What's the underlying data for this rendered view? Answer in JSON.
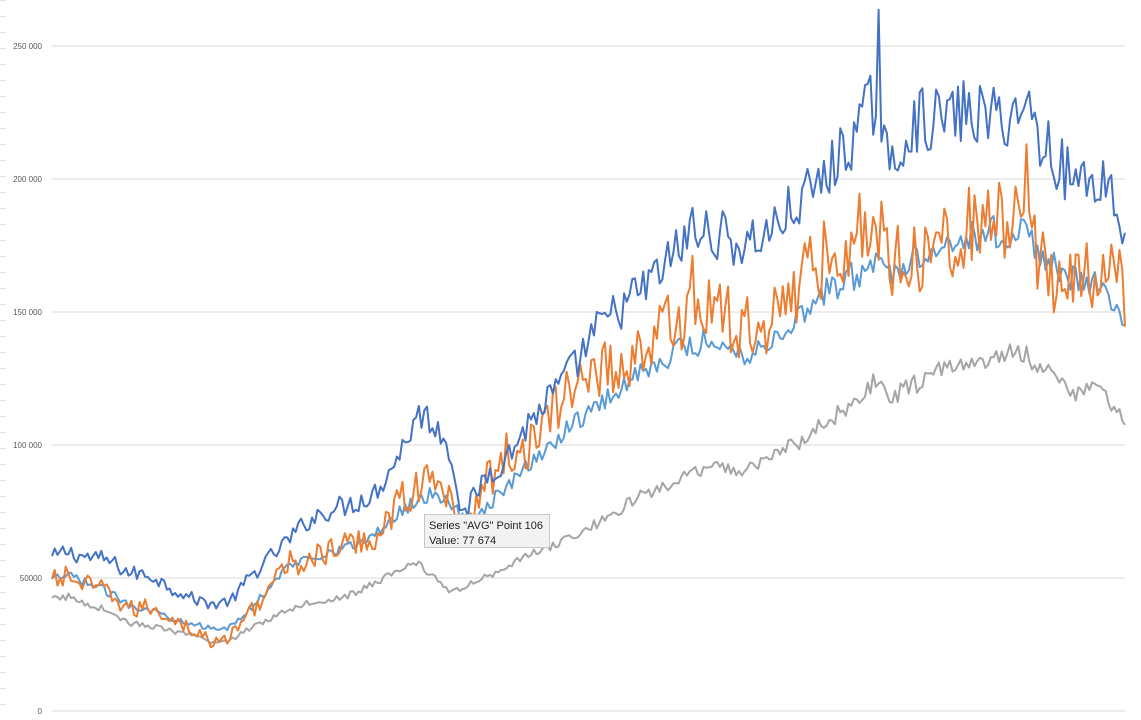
{
  "chart_data": {
    "type": "line",
    "title": "",
    "xlabel": "",
    "ylabel": "",
    "ylim": [
      0,
      260000
    ],
    "y_ticks": [
      0,
      50000,
      100000,
      150000,
      200000,
      250000
    ],
    "y_tick_labels": [
      "0",
      "50000",
      "100 000",
      "150 000",
      "200 000",
      "250 000"
    ],
    "grid": "horizontal",
    "legend": "none",
    "series": [
      {
        "color": "#4472c4",
        "anchors": [
          [
            0,
            57500
          ],
          [
            5,
            60000
          ],
          [
            12,
            58000
          ],
          [
            20,
            57000
          ],
          [
            28,
            52000
          ],
          [
            36,
            51000
          ],
          [
            44,
            46000
          ],
          [
            52,
            42000
          ],
          [
            60,
            40000
          ],
          [
            66,
            42000
          ],
          [
            72,
            50000
          ],
          [
            78,
            56000
          ],
          [
            86,
            64000
          ],
          [
            94,
            72000
          ],
          [
            102,
            76000
          ],
          [
            110,
            78000
          ],
          [
            118,
            82000
          ],
          [
            126,
            95000
          ],
          [
            134,
            112000
          ],
          [
            140,
            108000
          ],
          [
            146,
            97000
          ],
          [
            150,
            72000
          ],
          [
            158,
            88000
          ],
          [
            166,
            95000
          ],
          [
            174,
            108000
          ],
          [
            182,
            118000
          ],
          [
            190,
            128000
          ],
          [
            198,
            142000
          ],
          [
            206,
            150000
          ],
          [
            214,
            157000
          ],
          [
            222,
            165000
          ],
          [
            232,
            178000
          ],
          [
            242,
            180000
          ],
          [
            252,
            175000
          ],
          [
            262,
            180000
          ],
          [
            272,
            190000
          ],
          [
            282,
            200000
          ],
          [
            292,
            215000
          ],
          [
            302,
            232000
          ],
          [
            306,
            200000
          ],
          [
            314,
            222000
          ],
          [
            322,
            222000
          ],
          [
            332,
            225000
          ],
          [
            344,
            223000
          ],
          [
            354,
            225000
          ],
          [
            364,
            212000
          ],
          [
            372,
            200000
          ],
          [
            380,
            200000
          ],
          [
            386,
            200000
          ],
          [
            392,
            175000
          ]
        ]
      },
      {
        "color": "#ed7d31",
        "anchors": [
          [
            0,
            48500
          ],
          [
            6,
            51000
          ],
          [
            12,
            47000
          ],
          [
            20,
            45000
          ],
          [
            28,
            38000
          ],
          [
            36,
            39000
          ],
          [
            44,
            35000
          ],
          [
            52,
            30000
          ],
          [
            60,
            25000
          ],
          [
            66,
            29000
          ],
          [
            72,
            37000
          ],
          [
            78,
            44000
          ],
          [
            86,
            55000
          ],
          [
            94,
            57000
          ],
          [
            102,
            60000
          ],
          [
            110,
            63000
          ],
          [
            118,
            65000
          ],
          [
            126,
            78000
          ],
          [
            134,
            85000
          ],
          [
            140,
            86000
          ],
          [
            146,
            80000
          ],
          [
            150,
            65000
          ],
          [
            158,
            85000
          ],
          [
            166,
            95000
          ],
          [
            174,
            100000
          ],
          [
            182,
            110000
          ],
          [
            190,
            122000
          ],
          [
            198,
            130000
          ],
          [
            206,
            128000
          ],
          [
            214,
            135000
          ],
          [
            222,
            142000
          ],
          [
            232,
            150000
          ],
          [
            242,
            152000
          ],
          [
            252,
            142000
          ],
          [
            262,
            148000
          ],
          [
            272,
            160000
          ],
          [
            282,
            170000
          ],
          [
            292,
            180000
          ],
          [
            302,
            180000
          ],
          [
            306,
            172000
          ],
          [
            314,
            170000
          ],
          [
            322,
            178000
          ],
          [
            332,
            180000
          ],
          [
            344,
            185000
          ],
          [
            354,
            180000
          ],
          [
            364,
            165000
          ],
          [
            372,
            163000
          ],
          [
            380,
            162000
          ],
          [
            386,
            165000
          ],
          [
            392,
            158000
          ]
        ]
      },
      {
        "color": "#5b9bd5",
        "anchors": [
          [
            0,
            49000
          ],
          [
            6,
            51000
          ],
          [
            12,
            48500
          ],
          [
            20,
            45000
          ],
          [
            28,
            40000
          ],
          [
            36,
            38000
          ],
          [
            44,
            35000
          ],
          [
            52,
            33000
          ],
          [
            60,
            30000
          ],
          [
            66,
            32000
          ],
          [
            72,
            38000
          ],
          [
            78,
            45000
          ],
          [
            86,
            54000
          ],
          [
            94,
            58000
          ],
          [
            102,
            60000
          ],
          [
            110,
            62000
          ],
          [
            118,
            66000
          ],
          [
            126,
            74000
          ],
          [
            134,
            80000
          ],
          [
            140,
            82000
          ],
          [
            146,
            78000
          ],
          [
            150,
            72000
          ],
          [
            158,
            76000
          ],
          [
            166,
            84000
          ],
          [
            174,
            92000
          ],
          [
            182,
            100000
          ],
          [
            190,
            108000
          ],
          [
            198,
            114000
          ],
          [
            206,
            120000
          ],
          [
            214,
            127000
          ],
          [
            222,
            132000
          ],
          [
            232,
            137000
          ],
          [
            242,
            140000
          ],
          [
            252,
            134000
          ],
          [
            262,
            138000
          ],
          [
            272,
            148000
          ],
          [
            282,
            157000
          ],
          [
            292,
            163000
          ],
          [
            302,
            168000
          ],
          [
            306,
            165000
          ],
          [
            314,
            170000
          ],
          [
            322,
            175000
          ],
          [
            332,
            178000
          ],
          [
            344,
            180000
          ],
          [
            354,
            180000
          ],
          [
            364,
            170000
          ],
          [
            372,
            162000
          ],
          [
            380,
            160000
          ],
          [
            386,
            158000
          ],
          [
            392,
            147000
          ]
        ]
      },
      {
        "color": "#a5a5a5",
        "anchors": [
          [
            0,
            42000
          ],
          [
            6,
            43000
          ],
          [
            12,
            40500
          ],
          [
            20,
            38000
          ],
          [
            28,
            33000
          ],
          [
            36,
            32000
          ],
          [
            44,
            30000
          ],
          [
            52,
            28000
          ],
          [
            60,
            25500
          ],
          [
            66,
            27000
          ],
          [
            72,
            31000
          ],
          [
            78,
            34000
          ],
          [
            86,
            38000
          ],
          [
            94,
            41000
          ],
          [
            102,
            42000
          ],
          [
            110,
            44000
          ],
          [
            118,
            48000
          ],
          [
            126,
            53000
          ],
          [
            134,
            55000
          ],
          [
            140,
            50000
          ],
          [
            146,
            45000
          ],
          [
            150,
            46000
          ],
          [
            158,
            50000
          ],
          [
            166,
            55000
          ],
          [
            174,
            58000
          ],
          [
            182,
            62000
          ],
          [
            190,
            65000
          ],
          [
            198,
            70000
          ],
          [
            206,
            75000
          ],
          [
            214,
            80000
          ],
          [
            222,
            84000
          ],
          [
            232,
            88000
          ],
          [
            242,
            92000
          ],
          [
            252,
            90000
          ],
          [
            262,
            96000
          ],
          [
            272,
            100000
          ],
          [
            282,
            108000
          ],
          [
            292,
            115000
          ],
          [
            302,
            125000
          ],
          [
            306,
            118000
          ],
          [
            314,
            122000
          ],
          [
            322,
            127000
          ],
          [
            332,
            130000
          ],
          [
            344,
            133000
          ],
          [
            354,
            135000
          ],
          [
            364,
            128000
          ],
          [
            372,
            118000
          ],
          [
            380,
            125000
          ],
          [
            386,
            117000
          ],
          [
            392,
            107000
          ]
        ]
      }
    ]
  },
  "tooltip": {
    "line1": "Series \"AVG\" Point 106",
    "line2": "Value: 77 674"
  }
}
